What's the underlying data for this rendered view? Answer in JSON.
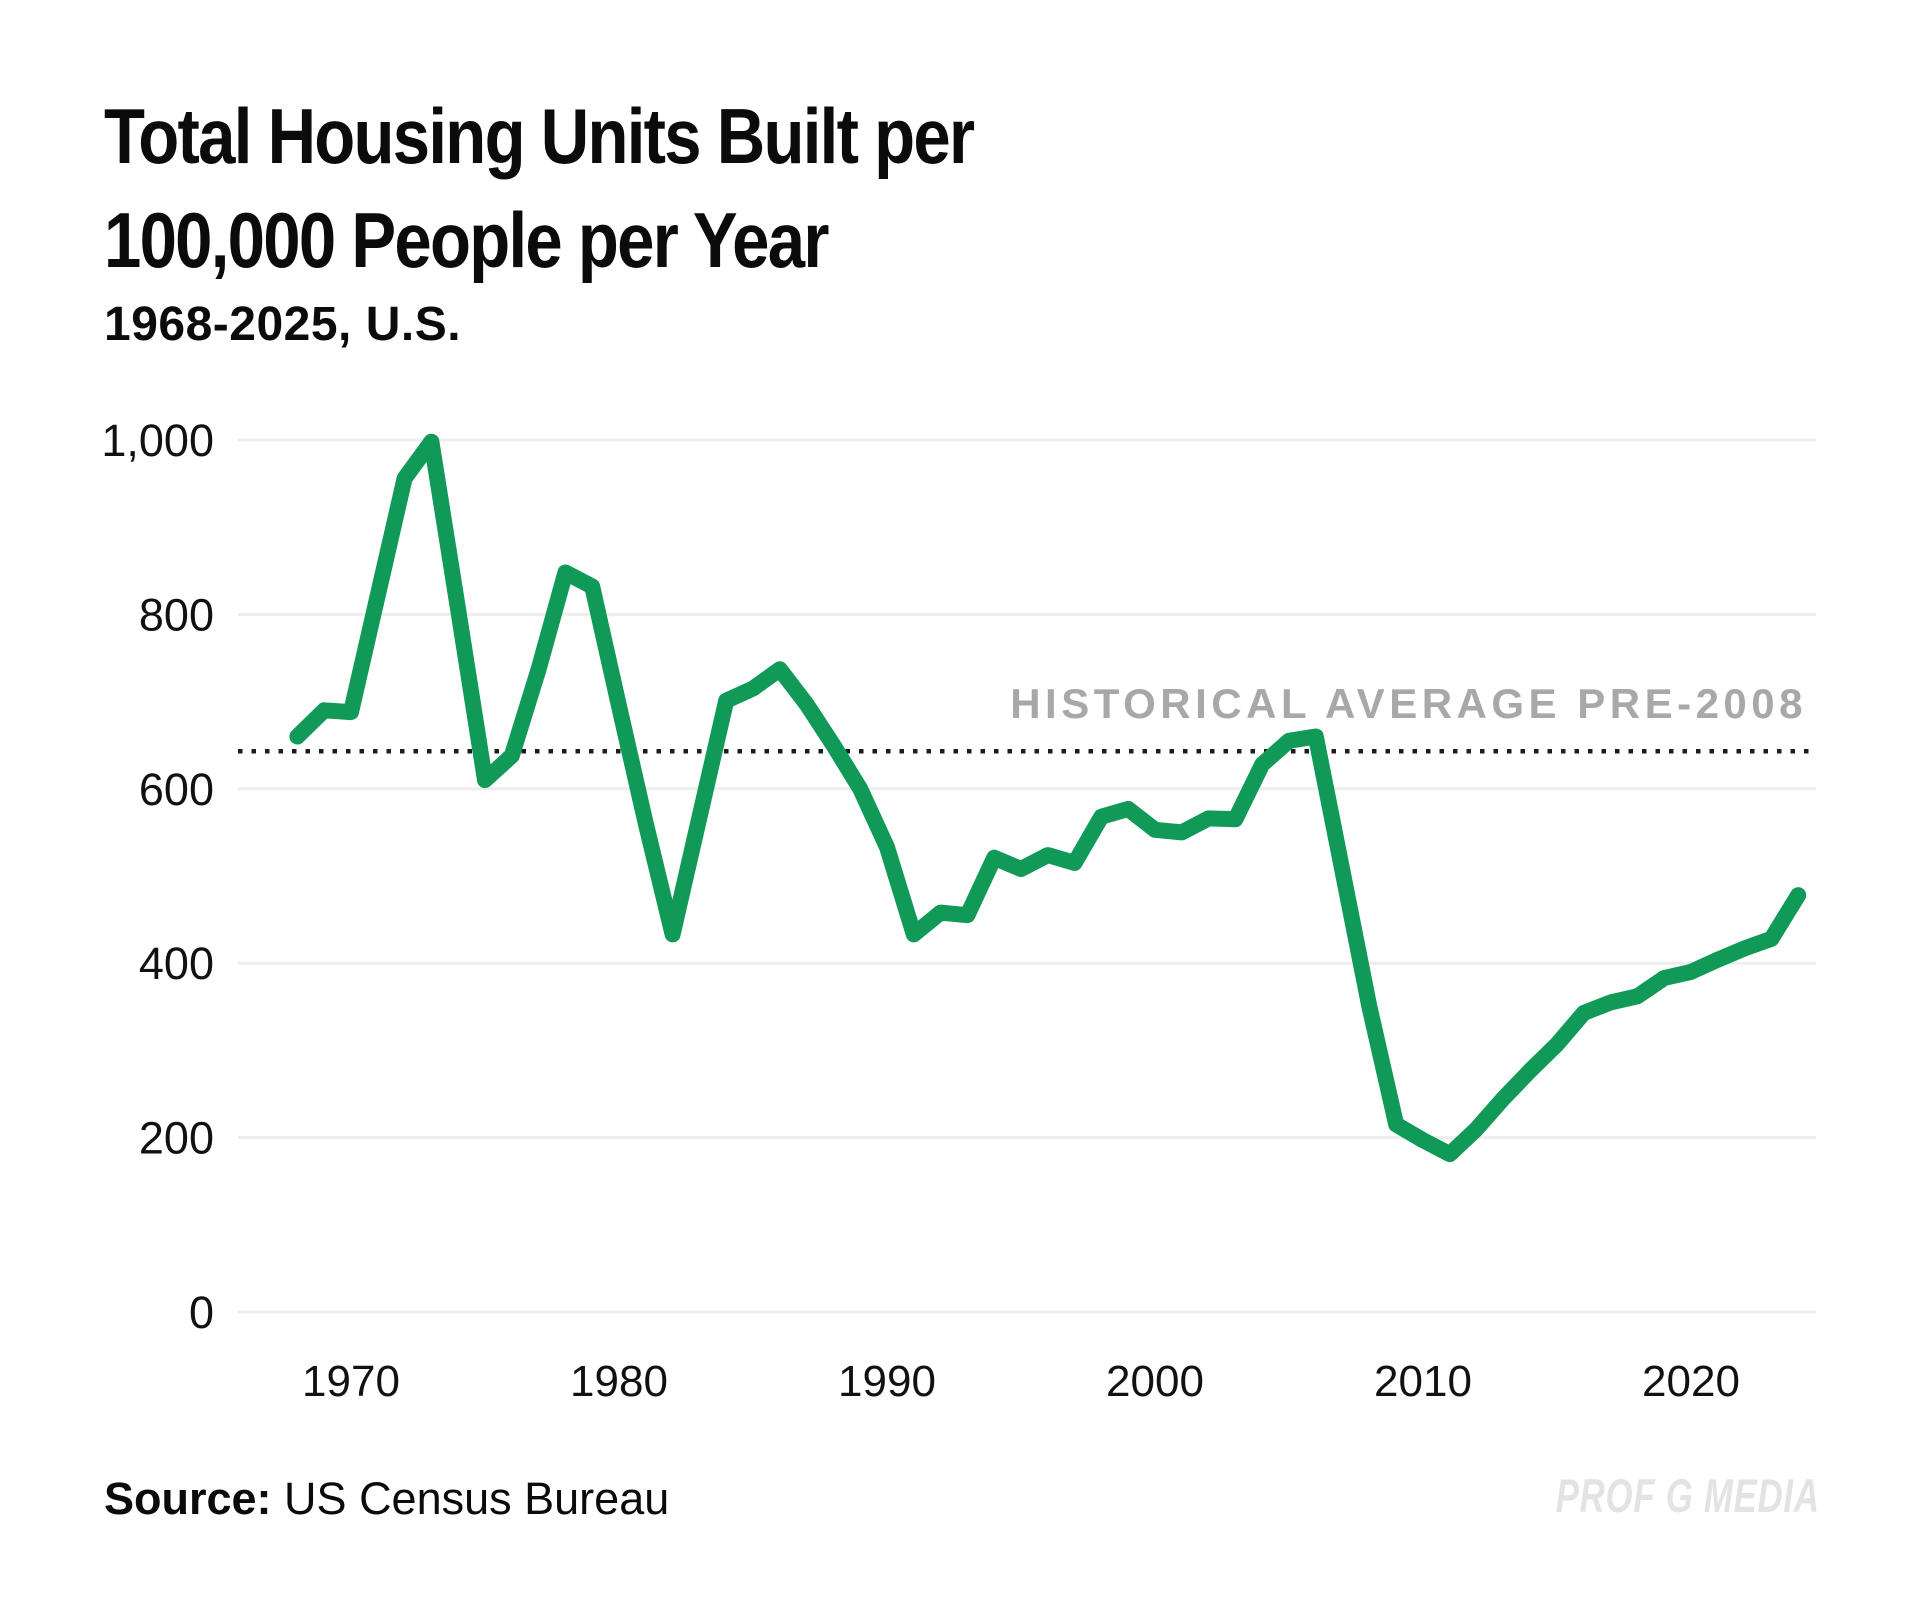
{
  "header": {
    "title_line1": "Total Housing Units Built per",
    "title_line2": "100,000 People per Year",
    "subtitle": "1968-2025, U.S."
  },
  "chart_data": {
    "type": "line",
    "title": "Total Housing Units Built per 100,000 People per Year",
    "subtitle": "1968-2025, U.S.",
    "series_name": "Total housing units built per 100,000 people per year",
    "line_color": "#119a57",
    "grid": "horizontal",
    "ylim": [
      0,
      1000
    ],
    "x": [
      1968,
      1969,
      1970,
      1971,
      1972,
      1973,
      1974,
      1975,
      1976,
      1977,
      1978,
      1979,
      1980,
      1981,
      1982,
      1983,
      1984,
      1985,
      1986,
      1987,
      1988,
      1989,
      1990,
      1991,
      1992,
      1993,
      1994,
      1995,
      1996,
      1997,
      1998,
      1999,
      2000,
      2001,
      2002,
      2003,
      2004,
      2005,
      2006,
      2007,
      2008,
      2009,
      2010,
      2011,
      2012,
      2013,
      2014,
      2015,
      2016,
      2017,
      2018,
      2019,
      2020,
      2021,
      2022,
      2023,
      2024
    ],
    "values": [
      660,
      690,
      688,
      822,
      956,
      998,
      805,
      610,
      638,
      737,
      848,
      832,
      695,
      560,
      433,
      567,
      701,
      715,
      737,
      697,
      650,
      600,
      533,
      433,
      458,
      455,
      521,
      508,
      524,
      515,
      568,
      577,
      553,
      550,
      566,
      565,
      628,
      655,
      660,
      505,
      350,
      215,
      197,
      181,
      210,
      245,
      277,
      307,
      343,
      355,
      362,
      383,
      390,
      404,
      417,
      428,
      478
    ],
    "y_ticks": [
      {
        "value": 1000,
        "label": "1,000"
      },
      {
        "value": 800,
        "label": "800"
      },
      {
        "value": 600,
        "label": "600"
      },
      {
        "value": 400,
        "label": "400"
      },
      {
        "value": 200,
        "label": "200"
      },
      {
        "value": 0,
        "label": "0"
      }
    ],
    "x_ticks": [
      {
        "value": 1970,
        "label": "1970"
      },
      {
        "value": 1980,
        "label": "1980"
      },
      {
        "value": 1990,
        "label": "1990"
      },
      {
        "value": 2000,
        "label": "2000"
      },
      {
        "value": 2010,
        "label": "2010"
      },
      {
        "value": 2020,
        "label": "2020"
      }
    ],
    "reference_line": {
      "label": "HISTORICAL AVERAGE PRE-2008",
      "value": 643,
      "style": "dotted",
      "line_color": "#1c1c1c",
      "label_color": "#a8a8a8"
    },
    "legend_position": "none"
  },
  "footer": {
    "source_label": "Source:",
    "source_value": " US Census Bureau",
    "watermark": "PROF G MEDIA"
  }
}
